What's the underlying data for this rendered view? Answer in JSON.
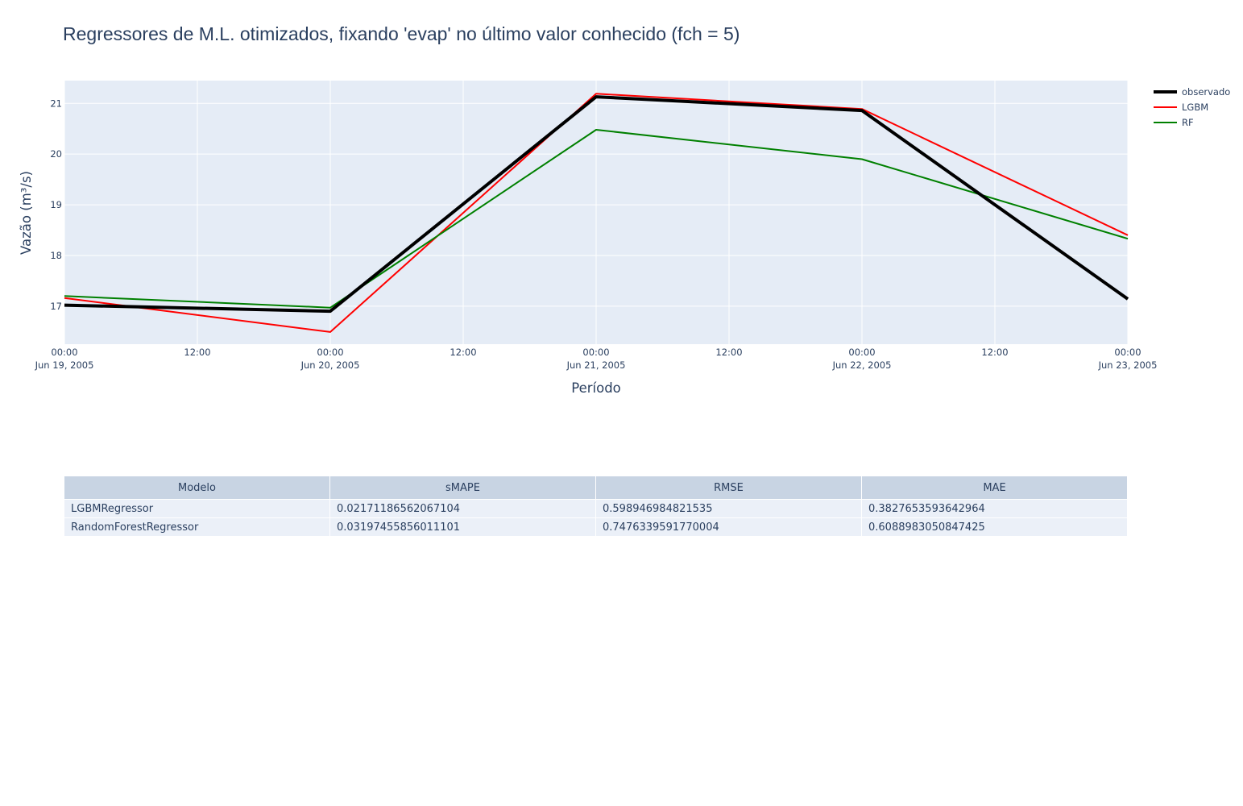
{
  "chart_data": {
    "type": "line",
    "title": "Regressores de M.L. otimizados, fixando 'evap' no último valor conhecido (fch = 5)",
    "xlabel": "Período",
    "ylabel": "Vazão (m³/s)",
    "x": [
      "2005-06-19T00:00",
      "2005-06-20T00:00",
      "2005-06-21T00:00",
      "2005-06-22T00:00",
      "2005-06-23T00:00"
    ],
    "xlim": [
      "2005-06-19T00:00",
      "2005-06-23T00:00"
    ],
    "ylim": [
      16.25,
      21.45
    ],
    "x_ticks": [
      {
        "time": "00:00",
        "date": "Jun 19, 2005"
      },
      {
        "time": "12:00",
        "date": ""
      },
      {
        "time": "00:00",
        "date": "Jun 20, 2005"
      },
      {
        "time": "12:00",
        "date": ""
      },
      {
        "time": "00:00",
        "date": "Jun 21, 2005"
      },
      {
        "time": "12:00",
        "date": ""
      },
      {
        "time": "00:00",
        "date": "Jun 22, 2005"
      },
      {
        "time": "12:00",
        "date": ""
      },
      {
        "time": "00:00",
        "date": "Jun 23, 2005"
      }
    ],
    "y_ticks": [
      17,
      18,
      19,
      20,
      21
    ],
    "grid": true,
    "legend_position": "top-right",
    "series": [
      {
        "name": "observado",
        "color": "#000000",
        "values": [
          17.02,
          16.9,
          21.13,
          20.86,
          17.14
        ]
      },
      {
        "name": "LGBM",
        "color": "#ff0000",
        "values": [
          17.16,
          16.49,
          21.19,
          20.89,
          18.4
        ]
      },
      {
        "name": "RF",
        "color": "#008000",
        "values": [
          17.2,
          16.97,
          20.48,
          19.9,
          18.33
        ]
      }
    ]
  },
  "table": {
    "headers": [
      "Modelo",
      "sMAPE",
      "RMSE",
      "MAE"
    ],
    "rows": [
      [
        "LGBMRegressor",
        "0.02171186562067104",
        "0.598946984821535",
        "0.3827653593642964"
      ],
      [
        "RandomForestRegressor",
        "0.03197455856011101",
        "0.7476339591770004",
        "0.6088983050847425"
      ]
    ]
  }
}
